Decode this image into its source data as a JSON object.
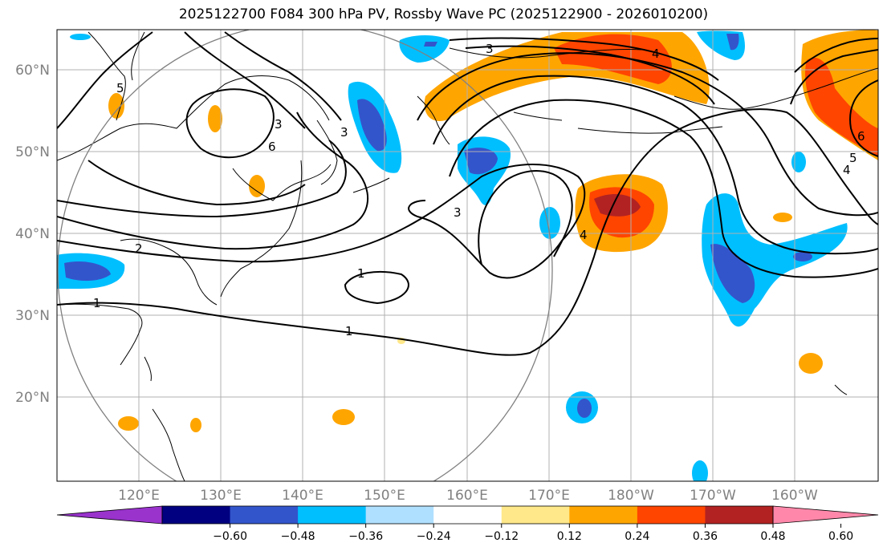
{
  "title": "2025122700 F084 300 hPa PV, Rossby Wave PC (2025122900 - 2026010200)",
  "lat_labels": [
    "60°N",
    "50°N",
    "40°N",
    "30°N",
    "20°N"
  ],
  "lon_labels": [
    "120°E",
    "130°E",
    "140°E",
    "150°E",
    "160°E",
    "170°E",
    "180°W",
    "170°W",
    "160°W"
  ],
  "colorbar": {
    "ticks": [
      "−0.60",
      "−0.48",
      "−0.36",
      "−0.24",
      "−0.12",
      "0.12",
      "0.24",
      "0.36",
      "0.48",
      "0.60"
    ],
    "colors": [
      "#9933cc",
      "#000080",
      "#3355cc",
      "#00bfff",
      "#b0e0ff",
      "#ffffff",
      "#ffe88a",
      "#ffa500",
      "#ff4500",
      "#b22222",
      "#ff88aa"
    ]
  },
  "contour_labels": [
    "1",
    "1",
    "1",
    "2",
    "3",
    "3",
    "3",
    "3",
    "4",
    "4",
    "4",
    "5",
    "5",
    "6",
    "6"
  ]
}
